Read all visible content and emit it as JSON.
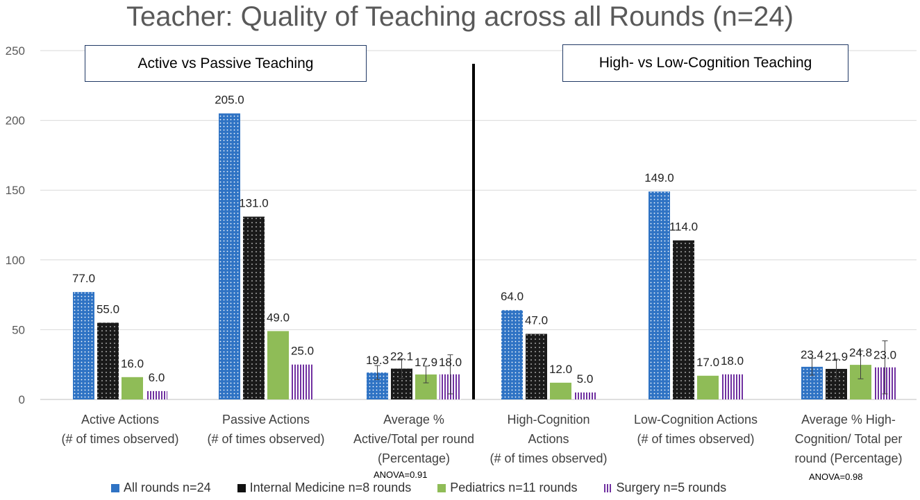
{
  "chart_data": {
    "type": "bar",
    "title": "Teacher: Quality of Teaching across all Rounds (n=24)",
    "ylim": [
      0,
      250
    ],
    "yticks": [
      0,
      50,
      100,
      150,
      200,
      250
    ],
    "grid": true,
    "legend_position": "bottom",
    "panels": [
      "Active vs Passive Teaching",
      "High- vs Low-Cognition Teaching"
    ],
    "categories": [
      [
        "Active Actions",
        "(# of times observed)"
      ],
      [
        "Passive Actions",
        "(# of times observed)"
      ],
      [
        "Average %",
        "Active/Total per round",
        "(Percentage)"
      ],
      [
        "High-Cognition",
        "Actions",
        "(# of times observed)"
      ],
      [
        "Low-Cognition Actions",
        "(# of times observed)"
      ],
      [
        "Average % High-",
        "Cognition/ Total per",
        "round  (Percentage)"
      ]
    ],
    "series": [
      {
        "name": "All rounds n=24",
        "color": "#2f73c4",
        "pattern": "dots-blue",
        "values": [
          77.0,
          205.0,
          19.3,
          64.0,
          149.0,
          23.4
        ],
        "labels": [
          "77.0",
          "205.0",
          "19.3",
          "64.0",
          "149.0",
          "23.4"
        ],
        "errors": [
          0,
          0,
          5,
          0,
          0,
          6
        ]
      },
      {
        "name": "Internal Medicine n=8 rounds",
        "color": "#111111",
        "pattern": "dots-black",
        "values": [
          55.0,
          131.0,
          22.1,
          47.0,
          114.0,
          21.9
        ],
        "labels": [
          "55.0",
          "131.0",
          "22.1",
          "47.0",
          "114.0",
          "21.9"
        ],
        "errors": [
          0,
          0,
          7,
          0,
          0,
          7
        ]
      },
      {
        "name": "Pediatrics n=11 rounds",
        "color": "#8fbc57",
        "pattern": "solid",
        "values": [
          16.0,
          49.0,
          17.9,
          12.0,
          17.0,
          24.8
        ],
        "labels": [
          "16.0",
          "49.0",
          "17.9",
          "12.0",
          "17.0",
          "24.8"
        ],
        "errors": [
          0,
          0,
          6,
          0,
          0,
          10
        ]
      },
      {
        "name": "Surgery n=5 rounds",
        "color": "#7030a0",
        "pattern": "stripes-purple",
        "values": [
          6.0,
          25.0,
          18.0,
          5.0,
          18.0,
          23.0
        ],
        "labels": [
          "6.0",
          "25.0",
          "18.0",
          "5.0",
          "18.0",
          "23.0"
        ],
        "errors": [
          0,
          0,
          14,
          0,
          0,
          19
        ]
      }
    ],
    "annotations": [
      "ANOVA=0.91",
      "ANOVA=0.98"
    ]
  }
}
